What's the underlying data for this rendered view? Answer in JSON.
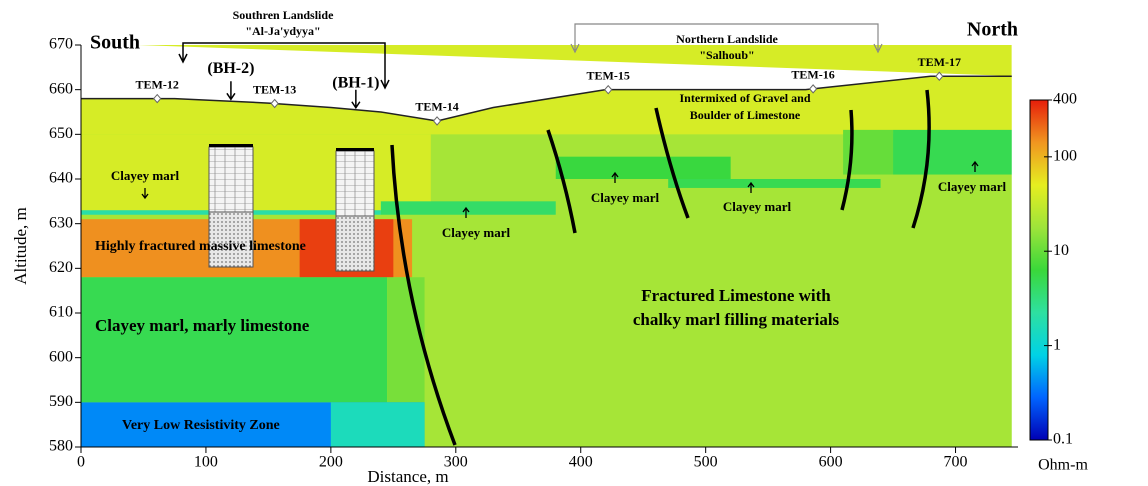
{
  "chart_data": {
    "type": "section",
    "xlabel": "Distance, m",
    "ylabel": "Altitude, m",
    "xlim": [
      0,
      750
    ],
    "ylim": [
      580,
      670
    ],
    "xticks": [
      0,
      100,
      200,
      300,
      400,
      500,
      600,
      700
    ],
    "yticks": [
      580,
      590,
      600,
      610,
      620,
      630,
      640,
      650,
      660,
      670
    ],
    "colorbar": {
      "label": "Ohm-m",
      "log": true,
      "lim": [
        0.1,
        400
      ],
      "ticks": [
        0.1,
        1,
        10,
        100,
        400
      ],
      "colors": [
        "#0000b4",
        "#0064ff",
        "#00d2e6",
        "#2ee0a0",
        "#3ad83a",
        "#9ee43a",
        "#e6ee20",
        "#f09620",
        "#e61e0a"
      ]
    },
    "zones": [
      {
        "x": [
          0,
          750
        ],
        "y": [
          580,
          670
        ],
        "value": 20
      },
      {
        "x": [
          0,
          750
        ],
        "y": [
          650,
          670
        ],
        "value": 40
      },
      {
        "x": [
          0,
          280
        ],
        "y": [
          633,
          650
        ],
        "value": 40
      },
      {
        "x": [
          0,
          265
        ],
        "y": [
          618,
          631
        ],
        "value": 150
      },
      {
        "x": [
          175,
          250
        ],
        "y": [
          618,
          631
        ],
        "value": 300
      },
      {
        "x": [
          0,
          240
        ],
        "y": [
          632,
          633
        ],
        "value": 2
      },
      {
        "x": [
          0,
          245
        ],
        "y": [
          590,
          618
        ],
        "value": 5
      },
      {
        "x": [
          245,
          275
        ],
        "y": [
          590,
          618
        ],
        "value": 12
      },
      {
        "x": [
          0,
          275
        ],
        "y": [
          580,
          590
        ],
        "value": 0.4
      },
      {
        "x": [
          200,
          275
        ],
        "y": [
          580,
          590
        ],
        "value": 1.5
      },
      {
        "x": [
          240,
          380
        ],
        "y": [
          632,
          635
        ],
        "value": 4
      },
      {
        "x": [
          380,
          520
        ],
        "y": [
          640,
          645
        ],
        "value": 6
      },
      {
        "x": [
          470,
          640
        ],
        "y": [
          638,
          640
        ],
        "value": 5
      },
      {
        "x": [
          610,
          650
        ],
        "y": [
          641,
          651
        ],
        "value": 10
      },
      {
        "x": [
          650,
          750
        ],
        "y": [
          641,
          651
        ],
        "value": 5
      }
    ],
    "topography": {
      "x": [
        0,
        75,
        150,
        200,
        240,
        285,
        330,
        420,
        580,
        680,
        745
      ],
      "y": [
        658,
        658,
        657,
        656,
        655,
        653,
        656,
        660,
        660,
        663,
        663
      ]
    },
    "stations": [
      {
        "name": "TEM-12",
        "x": 61
      },
      {
        "name": "TEM-13",
        "x": 155
      },
      {
        "name": "TEM-14",
        "x": 285
      },
      {
        "name": "TEM-15",
        "x": 422
      },
      {
        "name": "TEM-16",
        "x": 586
      },
      {
        "name": "TEM-17",
        "x": 687
      }
    ],
    "boreholes": [
      {
        "name": "(BH-2)",
        "x": 120
      },
      {
        "name": "(BH-1)",
        "x": 220
      }
    ],
    "annotations": [
      "South",
      "North",
      "Southren Landslide",
      "\"Al-Ja'ydyya\"",
      "Northern Landslide",
      "\"Salhoub\"",
      "Clayey marl",
      "Clayey marl",
      "Clayey marl",
      "Clayey marl",
      "Clayey marl",
      "Highly fractured massive limestone",
      "Clayey marl, marly limestone",
      "Very Low Resistivity Zone",
      "Fractured Limestone with",
      "chalky marl filling materials",
      "Intermixed of Gravel and",
      "Boulder of Limestone"
    ]
  }
}
